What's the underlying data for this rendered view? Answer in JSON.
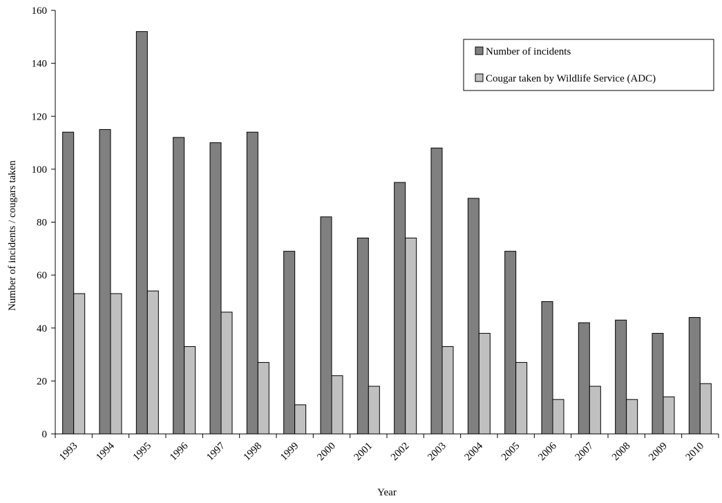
{
  "chart_data": {
    "type": "bar",
    "title": "",
    "xlabel": "Year",
    "ylabel": "Number of incidents / cougars taken",
    "ylim": [
      0,
      160
    ],
    "yticks": [
      0,
      20,
      40,
      60,
      80,
      100,
      120,
      140,
      160
    ],
    "grid": false,
    "legend_position": "top-right",
    "categories": [
      "1993",
      "1994",
      "1995",
      "1996",
      "1997",
      "1998",
      "1999",
      "2000",
      "2001",
      "2002",
      "2003",
      "2004",
      "2005",
      "2006",
      "2007",
      "2008",
      "2009",
      "2010"
    ],
    "series": [
      {
        "name": "Number of incidents",
        "color": "#808080",
        "values": [
          114,
          115,
          152,
          112,
          110,
          114,
          69,
          82,
          74,
          95,
          108,
          89,
          69,
          50,
          42,
          43,
          38,
          44
        ]
      },
      {
        "name": "Cougar taken by Wildlife Service (ADC)",
        "color": "#c0c0c0",
        "values": [
          53,
          53,
          54,
          33,
          46,
          27,
          11,
          22,
          18,
          74,
          33,
          38,
          27,
          13,
          18,
          13,
          14,
          19
        ]
      }
    ]
  }
}
